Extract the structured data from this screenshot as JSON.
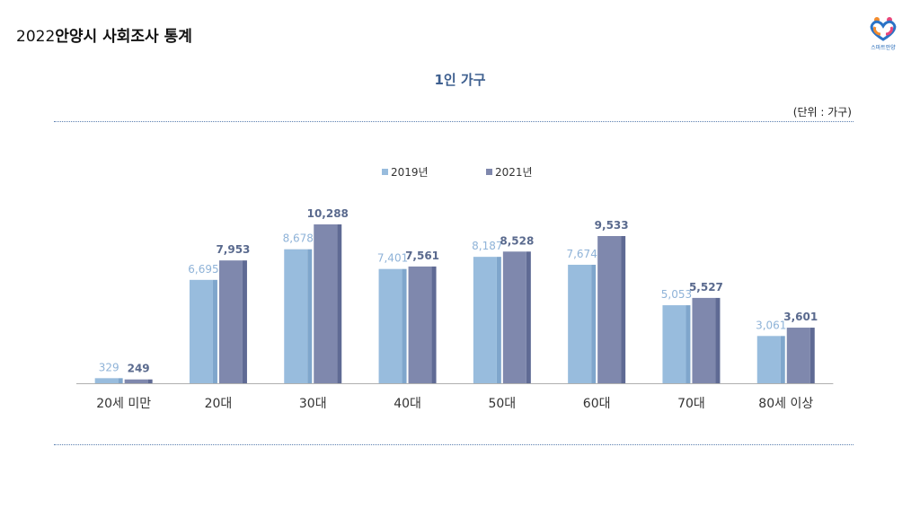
{
  "header": {
    "year": "2022",
    "title": "안양시 사회조사 통계",
    "logo_text": "스마트안양"
  },
  "unit_label": "(단위 : 가구)",
  "colors": {
    "series_2019": "#98bcdd",
    "series_2021": "#7f88ad",
    "label_2019": "#8fb3d8",
    "label_2021": "#5a6a8e"
  },
  "chart_data": {
    "type": "bar",
    "title": "1인 가구",
    "categories": [
      "20세 미만",
      "20대",
      "30대",
      "40대",
      "50대",
      "60대",
      "70대",
      "80세 이상"
    ],
    "series": [
      {
        "name": "2019년",
        "values": [
          329,
          6695,
          8678,
          7401,
          8187,
          7674,
          5053,
          3061
        ],
        "labels": [
          "329",
          "6,695",
          "8,678",
          "7,401",
          "8,187",
          "7,674",
          "5,053",
          "3,061"
        ]
      },
      {
        "name": "2021년",
        "values": [
          249,
          7953,
          10288,
          7561,
          8528,
          9533,
          5527,
          3601
        ],
        "labels": [
          "249",
          "7,953",
          "10,288",
          "7,561",
          "8,528",
          "9,533",
          "5,527",
          "3,601"
        ]
      }
    ],
    "ylim": [
      0,
      10288
    ],
    "xlabel": "",
    "ylabel": "",
    "legend_position": "top-center",
    "grid": false
  }
}
